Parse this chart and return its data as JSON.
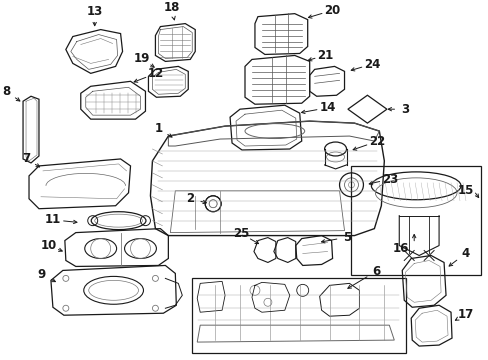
{
  "bg_color": "#ffffff",
  "line_color": "#1a1a1a",
  "light_color": "#666666",
  "figsize": [
    4.89,
    3.6
  ],
  "dpi": 100
}
